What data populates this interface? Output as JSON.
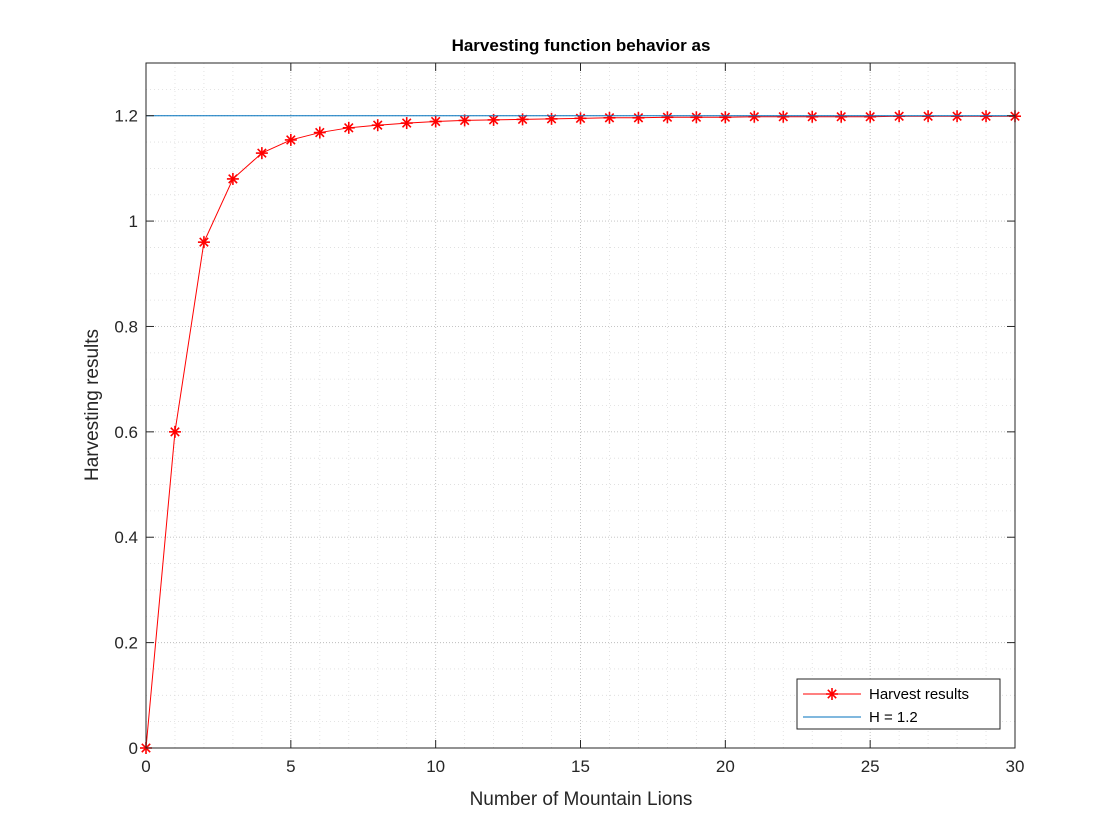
{
  "chart_data": {
    "type": "line",
    "title": "Harvesting function behavior as",
    "xlabel": "Number of Mountain Lions",
    "ylabel": "Harvesting results",
    "xlim": [
      0,
      30
    ],
    "ylim": [
      0,
      1.3
    ],
    "x_ticks": [
      0,
      5,
      10,
      15,
      20,
      25,
      30
    ],
    "y_ticks": [
      0,
      0.2,
      0.4,
      0.6,
      0.8,
      1,
      1.2
    ],
    "x_tick_labels": [
      "0",
      "5",
      "10",
      "15",
      "20",
      "25",
      "30"
    ],
    "y_tick_labels": [
      "0",
      "0.2",
      "0.4",
      "0.6",
      "0.8",
      "1",
      "1.2"
    ],
    "grid": true,
    "minor_grid": true,
    "legend_position": "bottom-right",
    "series": [
      {
        "name": "Harvest results",
        "color": "#ff0000",
        "marker": "asterisk",
        "x": [
          0,
          1,
          2,
          3,
          4,
          5,
          6,
          7,
          8,
          9,
          10,
          11,
          12,
          13,
          14,
          15,
          16,
          17,
          18,
          19,
          20,
          21,
          22,
          23,
          24,
          25,
          26,
          27,
          28,
          29,
          30
        ],
        "y": [
          0,
          0.6,
          0.96,
          1.08,
          1.129,
          1.154,
          1.168,
          1.177,
          1.182,
          1.186,
          1.189,
          1.191,
          1.192,
          1.193,
          1.194,
          1.195,
          1.196,
          1.196,
          1.197,
          1.197,
          1.197,
          1.198,
          1.198,
          1.198,
          1.198,
          1.198,
          1.199,
          1.199,
          1.199,
          1.199,
          1.199
        ]
      },
      {
        "name": "H = 1.2",
        "color": "#0072bd",
        "marker": "none",
        "x": [
          0,
          30
        ],
        "y": [
          1.2,
          1.2
        ]
      }
    ]
  }
}
